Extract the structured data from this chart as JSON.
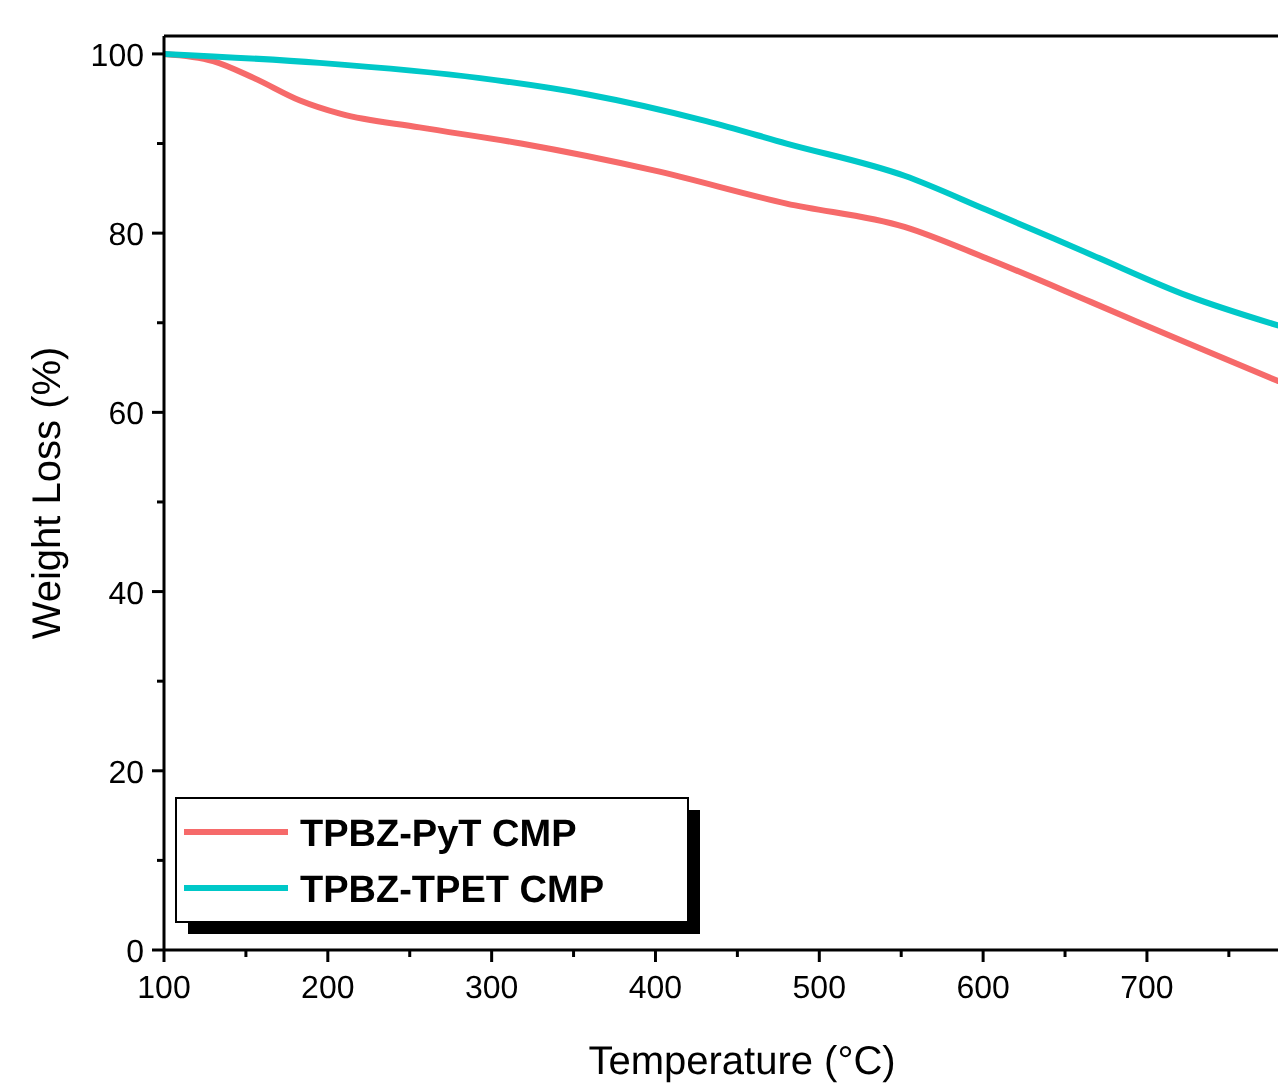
{
  "chart_data": {
    "type": "line",
    "xlabel": "Temperature (°C)",
    "ylabel": "Weight Loss (%)",
    "xlim": [
      100,
      780
    ],
    "xticks": [
      100,
      200,
      300,
      400,
      500,
      600,
      700
    ],
    "ylim": [
      0,
      102
    ],
    "yticks": [
      0,
      20,
      40,
      60,
      80,
      100
    ],
    "legend": "bottom left",
    "marker": "none",
    "line_style": "solid",
    "series": [
      {
        "name": "TPBZ-PyT CMP",
        "color": "#f66a6a",
        "x": [
          100,
          130,
          155,
          183,
          208,
          256,
          318,
          399,
          480,
          552,
          602,
          666,
          725,
          780
        ],
        "values": [
          100,
          99.2,
          97.3,
          94.8,
          93.3,
          91.8,
          90,
          87,
          83.3,
          80.7,
          77.2,
          72.3,
          67.7,
          63.5
        ]
      },
      {
        "name": "TPBZ-TPET CMP",
        "color": "#00c8c8",
        "x": [
          100,
          195,
          293,
          358,
          431,
          480,
          552,
          602,
          666,
          725,
          780
        ],
        "values": [
          100,
          99,
          97.3,
          95.5,
          92.5,
          90,
          86.4,
          82.6,
          77.6,
          73,
          69.7
        ]
      }
    ]
  }
}
